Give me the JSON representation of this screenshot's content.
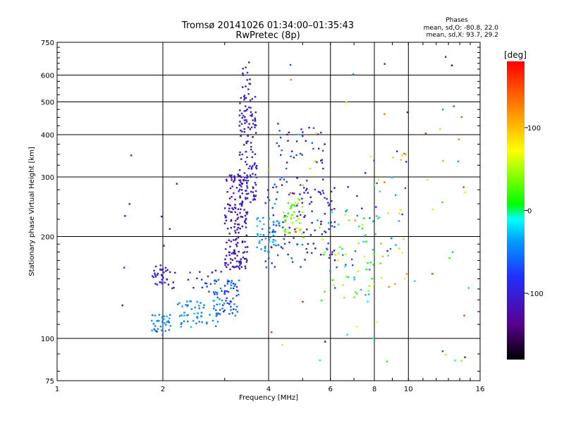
{
  "chart_data": {
    "type": "scatter",
    "title": "Tromsø 20141026 01:34:00–01:35:43",
    "subtitle": "RwPretec (8p)",
    "xlabel": "Frequency [MHz]",
    "ylabel": "Stationary phase Virtual Height [km]",
    "x_scale": "log",
    "y_scale": "log",
    "xlim": [
      1,
      16
    ],
    "ylim": [
      75,
      750
    ],
    "grid": true,
    "x_ticks": [
      "1",
      "2",
      "4",
      "6",
      "8",
      "10",
      "16"
    ],
    "y_ticks": [
      "75",
      "100",
      "200",
      "300",
      "400",
      "500",
      "600",
      "750"
    ],
    "phases": {
      "title": "Phases",
      "line1": "mean, sd,O: -80.8, 22.0",
      "line2": "mean, sd,X:  93.7, 29.2"
    },
    "colorbar": {
      "label": "[deg]",
      "range": [
        -180,
        180
      ],
      "ticks": [
        "100",
        "0",
        "-100"
      ],
      "colormap": [
        "#000000",
        "#5a0090",
        "#2030ff",
        "#00a0ff",
        "#00ffff",
        "#00ff00",
        "#ffff00",
        "#ff8000",
        "#ff0000"
      ]
    },
    "clusters": [
      {
        "f": [
          1.85,
          2.1
        ],
        "h": [
          105,
          118
        ],
        "n": 35,
        "phase": [
          -60,
          -30
        ]
      },
      {
        "f": [
          1.85,
          2.15
        ],
        "h": [
          140,
          165
        ],
        "n": 35,
        "phase": [
          -120,
          -85
        ]
      },
      {
        "f": [
          2.2,
          2.9
        ],
        "h": [
          108,
          130
        ],
        "n": 55,
        "phase": [
          -60,
          -25
        ]
      },
      {
        "f": [
          2.35,
          3.1
        ],
        "h": [
          135,
          160
        ],
        "n": 25,
        "phase": [
          -110,
          -60
        ]
      },
      {
        "f": [
          2.8,
          3.3
        ],
        "h": [
          112,
          150
        ],
        "n": 60,
        "phase": [
          -90,
          -40
        ]
      },
      {
        "f": [
          3.0,
          3.5
        ],
        "h": [
          160,
          310
        ],
        "n": 170,
        "phase": [
          -130,
          -95
        ]
      },
      {
        "f": [
          3.3,
          3.7
        ],
        "h": [
          250,
          520
        ],
        "n": 130,
        "phase": [
          -125,
          -80
        ]
      },
      {
        "f": [
          3.35,
          3.55
        ],
        "h": [
          520,
          660
        ],
        "n": 15,
        "phase": [
          -120,
          -80
        ]
      },
      {
        "f": [
          3.7,
          4.3
        ],
        "h": [
          180,
          230
        ],
        "n": 50,
        "phase": [
          -60,
          -20
        ]
      },
      {
        "f": [
          3.9,
          5.0
        ],
        "h": [
          160,
          300
        ],
        "n": 55,
        "phase": [
          -120,
          -50
        ]
      },
      {
        "f": [
          4.4,
          5.0
        ],
        "h": [
          200,
          260
        ],
        "n": 40,
        "phase": [
          10,
          60
        ]
      },
      {
        "f": [
          4.2,
          5.8
        ],
        "h": [
          250,
          420
        ],
        "n": 50,
        "phase": [
          -130,
          -50
        ]
      },
      {
        "f": [
          5.0,
          6.2
        ],
        "h": [
          170,
          280
        ],
        "n": 50,
        "phase": [
          -130,
          -80
        ]
      },
      {
        "f": [
          5.5,
          8.0
        ],
        "h": [
          130,
          240
        ],
        "n": 60,
        "phase": [
          -80,
          60
        ]
      },
      {
        "f": [
          7.0,
          10.0
        ],
        "h": [
          140,
          360
        ],
        "n": 45,
        "phase": [
          -130,
          140
        ]
      },
      {
        "f": [
          4.0,
          15.0
        ],
        "h": [
          85,
          680
        ],
        "n": 70,
        "phase": [
          -150,
          170
        ]
      },
      {
        "f": [
          1.5,
          2.3
        ],
        "h": [
          95,
          350
        ],
        "n": 12,
        "phase": [
          -140,
          -60
        ]
      }
    ]
  }
}
